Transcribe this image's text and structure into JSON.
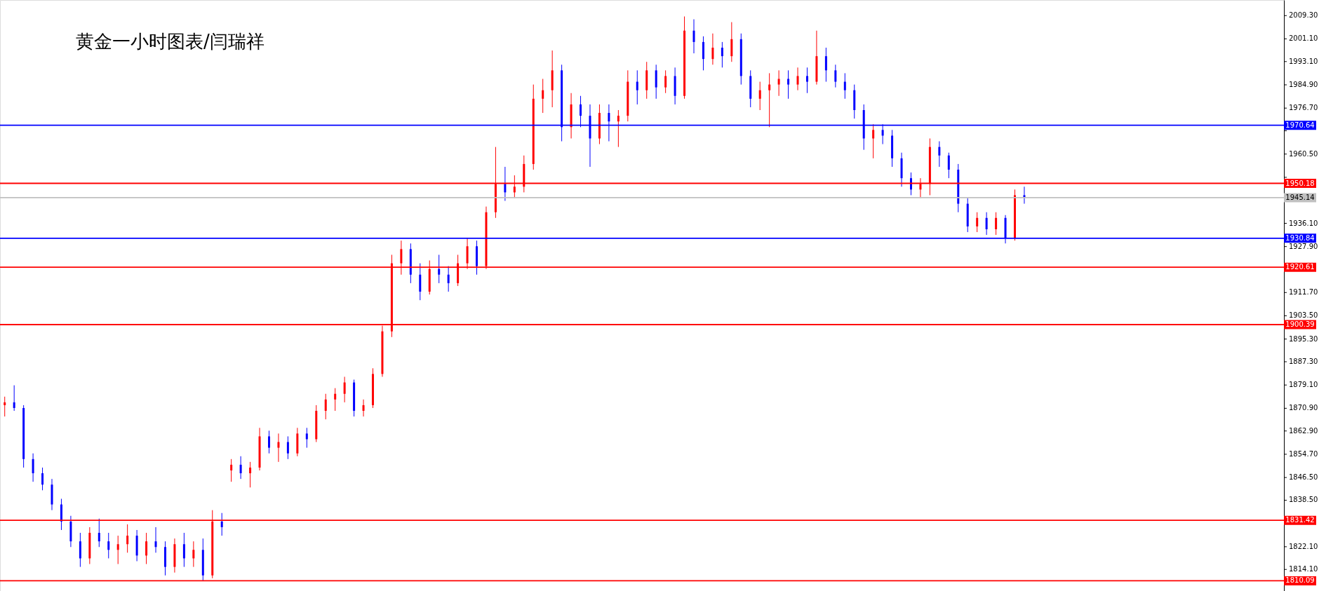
{
  "chart_data": {
    "type": "candlestick",
    "title": "黄金一小时图表/闫瑞祥",
    "categories": [
      null,
      null,
      null,
      null,
      null,
      null,
      null,
      null,
      null,
      null,
      null,
      null,
      null,
      null,
      null,
      null,
      null,
      null,
      null,
      null,
      null,
      null,
      null,
      null,
      null,
      null,
      null,
      null,
      null,
      null,
      null,
      null,
      null,
      null,
      null,
      null,
      null,
      null,
      null,
      null,
      null,
      null,
      null,
      null,
      null,
      null,
      null,
      null,
      null,
      null,
      null,
      null,
      null,
      null,
      null,
      null,
      null,
      null,
      null,
      null,
      null,
      null,
      null,
      null,
      null,
      null,
      null,
      null,
      null,
      null,
      null,
      null,
      null,
      null,
      null,
      null,
      null,
      null,
      null,
      null,
      null,
      null,
      null,
      null,
      null,
      null,
      null,
      null,
      null,
      null,
      null,
      null,
      null,
      null,
      null,
      null,
      null,
      null,
      null,
      null,
      null,
      null,
      null,
      null,
      null,
      null,
      null,
      null,
      null,
      null,
      null,
      null,
      null,
      null,
      null,
      null,
      null,
      null,
      null,
      null,
      null,
      null,
      null,
      null,
      null,
      null,
      null,
      null,
      null,
      null,
      null,
      null,
      null,
      null,
      null,
      null
    ],
    "ohlc": [
      [
        1872,
        1875,
        1868,
        1873
      ],
      [
        1873,
        1879,
        1870,
        1871
      ],
      [
        1871,
        1872,
        1850,
        1853
      ],
      [
        1853,
        1855,
        1845,
        1848
      ],
      [
        1848,
        1850,
        1842,
        1844
      ],
      [
        1844,
        1846,
        1835,
        1837
      ],
      [
        1837,
        1839,
        1828,
        1831
      ],
      [
        1831,
        1833,
        1822,
        1824
      ],
      [
        1824,
        1827,
        1815,
        1818
      ],
      [
        1818,
        1829,
        1816,
        1827
      ],
      [
        1827,
        1832,
        1822,
        1824
      ],
      [
        1824,
        1827,
        1818,
        1821
      ],
      [
        1821,
        1826,
        1816,
        1823
      ],
      [
        1823,
        1830,
        1820,
        1826
      ],
      [
        1826,
        1828,
        1817,
        1819
      ],
      [
        1819,
        1827,
        1816,
        1824
      ],
      [
        1824,
        1829,
        1820,
        1822
      ],
      [
        1822,
        1824,
        1812,
        1815
      ],
      [
        1815,
        1825,
        1813,
        1823
      ],
      [
        1823,
        1827,
        1815,
        1818
      ],
      [
        1818,
        1824,
        1815,
        1821
      ],
      [
        1821,
        1825,
        1810,
        1812
      ],
      [
        1812,
        1835,
        1811,
        1831
      ],
      [
        1831,
        1834,
        1826,
        1829
      ],
      [
        1849,
        1853,
        1845,
        1851
      ],
      [
        1851,
        1854,
        1846,
        1848
      ],
      [
        1848,
        1852,
        1843,
        1850
      ],
      [
        1850,
        1864,
        1849,
        1861
      ],
      [
        1861,
        1863,
        1855,
        1857
      ],
      [
        1857,
        1862,
        1852,
        1859
      ],
      [
        1859,
        1861,
        1853,
        1855
      ],
      [
        1855,
        1864,
        1854,
        1862
      ],
      [
        1862,
        1864,
        1857,
        1860
      ],
      [
        1860,
        1872,
        1859,
        1870
      ],
      [
        1870,
        1876,
        1867,
        1874
      ],
      [
        1874,
        1878,
        1870,
        1876
      ],
      [
        1876,
        1882,
        1873,
        1880
      ],
      [
        1880,
        1881,
        1868,
        1870
      ],
      [
        1870,
        1874,
        1868,
        1872
      ],
      [
        1872,
        1885,
        1871,
        1883
      ],
      [
        1883,
        1900,
        1882,
        1898
      ],
      [
        1898,
        1925,
        1896,
        1922
      ],
      [
        1922,
        1930,
        1918,
        1927
      ],
      [
        1927,
        1929,
        1915,
        1918
      ],
      [
        1918,
        1922,
        1909,
        1912
      ],
      [
        1912,
        1923,
        1911,
        1920
      ],
      [
        1920,
        1925,
        1915,
        1918
      ],
      [
        1918,
        1921,
        1912,
        1915
      ],
      [
        1915,
        1925,
        1914,
        1922
      ],
      [
        1922,
        1931,
        1920,
        1928
      ],
      [
        1928,
        1930,
        1918,
        1921
      ],
      [
        1921,
        1942,
        1920,
        1940
      ],
      [
        1940,
        1963,
        1938,
        1950
      ],
      [
        1950,
        1956,
        1944,
        1947
      ],
      [
        1947,
        1953,
        1945,
        1949
      ],
      [
        1949,
        1960,
        1947,
        1957
      ],
      [
        1957,
        1985,
        1955,
        1980
      ],
      [
        1980,
        1987,
        1975,
        1983
      ],
      [
        1983,
        1997,
        1977,
        1990
      ],
      [
        1990,
        1992,
        1965,
        1970
      ],
      [
        1970,
        1982,
        1966,
        1978
      ],
      [
        1978,
        1981,
        1970,
        1974
      ],
      [
        1974,
        1978,
        1956,
        1966
      ],
      [
        1966,
        1978,
        1964,
        1975
      ],
      [
        1975,
        1978,
        1965,
        1972
      ],
      [
        1972,
        1976,
        1963,
        1974
      ],
      [
        1974,
        1990,
        1972,
        1986
      ],
      [
        1986,
        1990,
        1978,
        1983
      ],
      [
        1983,
        1993,
        1980,
        1990
      ],
      [
        1990,
        1992,
        1980,
        1984
      ],
      [
        1984,
        1990,
        1982,
        1988
      ],
      [
        1988,
        1991,
        1978,
        1981
      ],
      [
        1981,
        2009,
        1980,
        2004
      ],
      [
        2004,
        2008,
        1996,
        2000
      ],
      [
        2000,
        2002,
        1990,
        1994
      ],
      [
        1994,
        2003,
        1992,
        1998
      ],
      [
        1998,
        2000,
        1991,
        1995
      ],
      [
        1995,
        2007,
        1993,
        2001
      ],
      [
        2001,
        2003,
        1985,
        1988
      ],
      [
        1988,
        1990,
        1977,
        1980
      ],
      [
        1980,
        1986,
        1976,
        1983
      ],
      [
        1983,
        1989,
        1970,
        1985
      ],
      [
        1985,
        1990,
        1981,
        1987
      ],
      [
        1987,
        1990,
        1980,
        1985
      ],
      [
        1985,
        1991,
        1983,
        1988
      ],
      [
        1988,
        1991,
        1982,
        1986
      ],
      [
        1986,
        2004,
        1985,
        1995
      ],
      [
        1995,
        1998,
        1986,
        1990
      ],
      [
        1990,
        1992,
        1984,
        1986
      ],
      [
        1986,
        1989,
        1980,
        1983
      ],
      [
        1983,
        1985,
        1973,
        1976
      ],
      [
        1976,
        1978,
        1962,
        1966
      ],
      [
        1966,
        1971,
        1959,
        1969
      ],
      [
        1969,
        1971,
        1964,
        1967
      ],
      [
        1967,
        1969,
        1956,
        1959
      ],
      [
        1959,
        1961,
        1949,
        1952
      ],
      [
        1952,
        1954,
        1946,
        1948
      ],
      [
        1948,
        1952,
        1945,
        1950
      ],
      [
        1950,
        1966,
        1946,
        1963
      ],
      [
        1963,
        1965,
        1956,
        1960
      ],
      [
        1960,
        1961,
        1952,
        1955
      ],
      [
        1955,
        1957,
        1940,
        1943
      ],
      [
        1943,
        1945,
        1933,
        1935
      ],
      [
        1935,
        1940,
        1933,
        1938
      ],
      [
        1938,
        1940,
        1932,
        1934
      ],
      [
        1934,
        1940,
        1932,
        1938
      ],
      [
        1938,
        1939,
        1929,
        1931
      ],
      [
        1931,
        1948,
        1930,
        1946
      ],
      [
        1946,
        1949,
        1943,
        1945.14
      ],
      null,
      null,
      null,
      null,
      null,
      null,
      null,
      null,
      null,
      null,
      null,
      null,
      null,
      null,
      null,
      null,
      null,
      null,
      null,
      null,
      null,
      null,
      null,
      null,
      null,
      null,
      null
    ],
    "colors": [
      "#ff0000",
      "#0000ff",
      "#0000ff",
      "#0000ff",
      "#0000ff",
      "#0000ff",
      "#0000ff",
      "#0000ff",
      "#0000ff",
      "#ff0000",
      "#0000ff",
      "#0000ff",
      "#ff0000",
      "#ff0000",
      "#0000ff",
      "#ff0000",
      "#0000ff",
      "#0000ff",
      "#ff0000",
      "#0000ff",
      "#ff0000",
      "#0000ff",
      "#ff0000",
      "#0000ff",
      "#ff0000",
      "#0000ff",
      "#ff0000",
      "#ff0000",
      "#0000ff",
      "#ff0000",
      "#0000ff",
      "#ff0000",
      "#0000ff",
      "#ff0000",
      "#ff0000",
      "#ff0000",
      "#ff0000",
      "#0000ff",
      "#ff0000",
      "#ff0000",
      "#ff0000",
      "#ff0000",
      "#ff0000",
      "#0000ff",
      "#0000ff",
      "#ff0000",
      "#0000ff",
      "#0000ff",
      "#ff0000",
      "#ff0000",
      "#0000ff",
      "#ff0000",
      "#ff0000",
      "#0000ff",
      "#ff0000",
      "#ff0000",
      "#ff0000",
      "#ff0000",
      "#ff0000",
      "#0000ff",
      "#ff0000",
      "#0000ff",
      "#0000ff",
      "#ff0000",
      "#0000ff",
      "#ff0000",
      "#ff0000",
      "#0000ff",
      "#ff0000",
      "#0000ff",
      "#ff0000",
      "#0000ff",
      "#ff0000",
      "#0000ff",
      "#0000ff",
      "#ff0000",
      "#0000ff",
      "#ff0000",
      "#0000ff",
      "#0000ff",
      "#ff0000",
      "#ff0000",
      "#ff0000",
      "#0000ff",
      "#ff0000",
      "#0000ff",
      "#ff0000",
      "#0000ff",
      "#0000ff",
      "#0000ff",
      "#0000ff",
      "#0000ff",
      "#ff0000",
      "#0000ff",
      "#0000ff",
      "#0000ff",
      "#0000ff",
      "#ff0000",
      "#ff0000",
      "#0000ff",
      "#0000ff",
      "#0000ff",
      "#0000ff",
      "#ff0000",
      "#0000ff",
      "#ff0000",
      "#0000ff",
      "#ff0000",
      "#0000ff",
      null,
      null,
      null,
      null,
      null,
      null,
      null,
      null,
      null,
      null,
      null,
      null,
      null,
      null,
      null,
      null,
      null,
      null,
      null,
      null,
      null,
      null,
      null,
      null,
      null,
      null,
      null
    ],
    "ylim": [
      1806.5,
      2014.8
    ],
    "yticks": [
      {
        "value": 2009.3,
        "label": "2009.30"
      },
      {
        "value": 2001.1,
        "label": "2001.10"
      },
      {
        "value": 1993.1,
        "label": "1993.10"
      },
      {
        "value": 1984.9,
        "label": "1984.90"
      },
      {
        "value": 1976.7,
        "label": "1976.70"
      },
      {
        "value": 1968.7,
        "label": null
      },
      {
        "value": 1960.5,
        "label": "1960.50"
      },
      {
        "value": 1952.3,
        "label": null
      },
      {
        "value": 1944.1,
        "label": null
      },
      {
        "value": 1936.1,
        "label": "1936.10"
      },
      {
        "value": 1927.9,
        "label": "1927.90"
      },
      {
        "value": 1919.7,
        "label": null
      },
      {
        "value": 1911.7,
        "label": "1911.70"
      },
      {
        "value": 1903.5,
        "label": "1903.50"
      },
      {
        "value": 1895.3,
        "label": "1895.30"
      },
      {
        "value": 1887.3,
        "label": "1887.30"
      },
      {
        "value": 1879.1,
        "label": "1879.10"
      },
      {
        "value": 1870.9,
        "label": "1870.90"
      },
      {
        "value": 1862.9,
        "label": "1862.90"
      },
      {
        "value": 1854.7,
        "label": "1854.70"
      },
      {
        "value": 1846.5,
        "label": "1846.50"
      },
      {
        "value": 1838.5,
        "label": "1838.50"
      },
      {
        "value": 1830.3,
        "label": null
      },
      {
        "value": 1822.1,
        "label": "1822.10"
      },
      {
        "value": 1814.1,
        "label": "1814.10"
      }
    ],
    "ref_lines": [
      {
        "axis": "y",
        "value": 1970.64,
        "label": "1970.64",
        "color": "#0000ff"
      },
      {
        "axis": "y",
        "value": 1950.18,
        "label": "1950.18",
        "color": "#ff0000"
      },
      {
        "axis": "y",
        "value": 1945.14,
        "label": "1945.14",
        "color": "#c0c0c0"
      },
      {
        "axis": "y",
        "value": 1930.84,
        "label": "1930.84",
        "color": "#0000ff"
      },
      {
        "axis": "y",
        "value": 1920.61,
        "label": "1920.61",
        "color": "#ff0000"
      },
      {
        "axis": "y",
        "value": 1900.39,
        "label": "1900.39",
        "color": "#ff0000"
      },
      {
        "axis": "y",
        "value": 1831.42,
        "label": "1831.42",
        "color": "#ff0000"
      },
      {
        "axis": "y",
        "value": 1810.09,
        "label": "1810.09",
        "color": "#ff0000"
      }
    ],
    "tick_labels": "y",
    "grid": false
  }
}
